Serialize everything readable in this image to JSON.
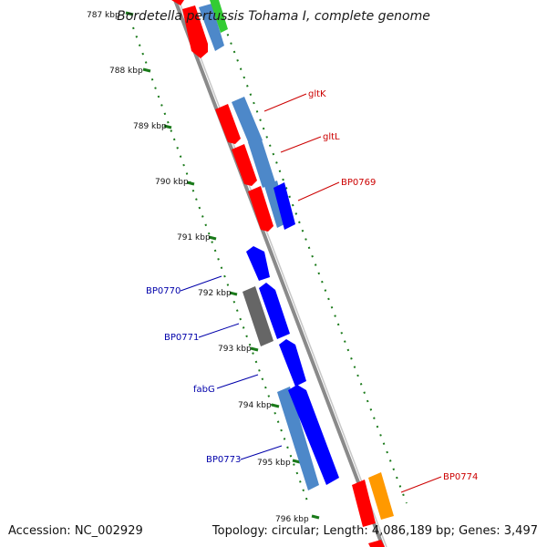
{
  "header": {
    "title": "Bordetella pertussis Tohama I, complete genome"
  },
  "footer": {
    "accession": "Accession: NC_002929",
    "topology": "Topology: circular; Length: 4,086,189 bp; Genes: 3,497"
  },
  "scale": {
    "ticks": [
      "787 kbp",
      "788 kbp",
      "789 kbp",
      "790 kbp",
      "791 kbp",
      "792 kbp",
      "793 kbp",
      "794 kbp",
      "795 kbp",
      "796 kbp"
    ]
  },
  "gene_labels": {
    "gltK": "gltK",
    "gltL": "gltL",
    "BP0769": "BP0769",
    "BP0770": "BP0770",
    "BP0771": "BP0771",
    "fabG": "fabG",
    "BP0773": "BP0773",
    "BP0774": "BP0774"
  },
  "colors": {
    "forward_gene": "#ff0000",
    "reverse_gene": "#0000ff",
    "cds_forward": "#4d88c9",
    "cds_other": "#666666",
    "orange_feature": "#ff9900",
    "green_feature": "#33cc33",
    "backbone": "#888888",
    "tick_green": "#1a7a1a",
    "label_red": "#cc0000",
    "label_blue": "#0000aa"
  }
}
